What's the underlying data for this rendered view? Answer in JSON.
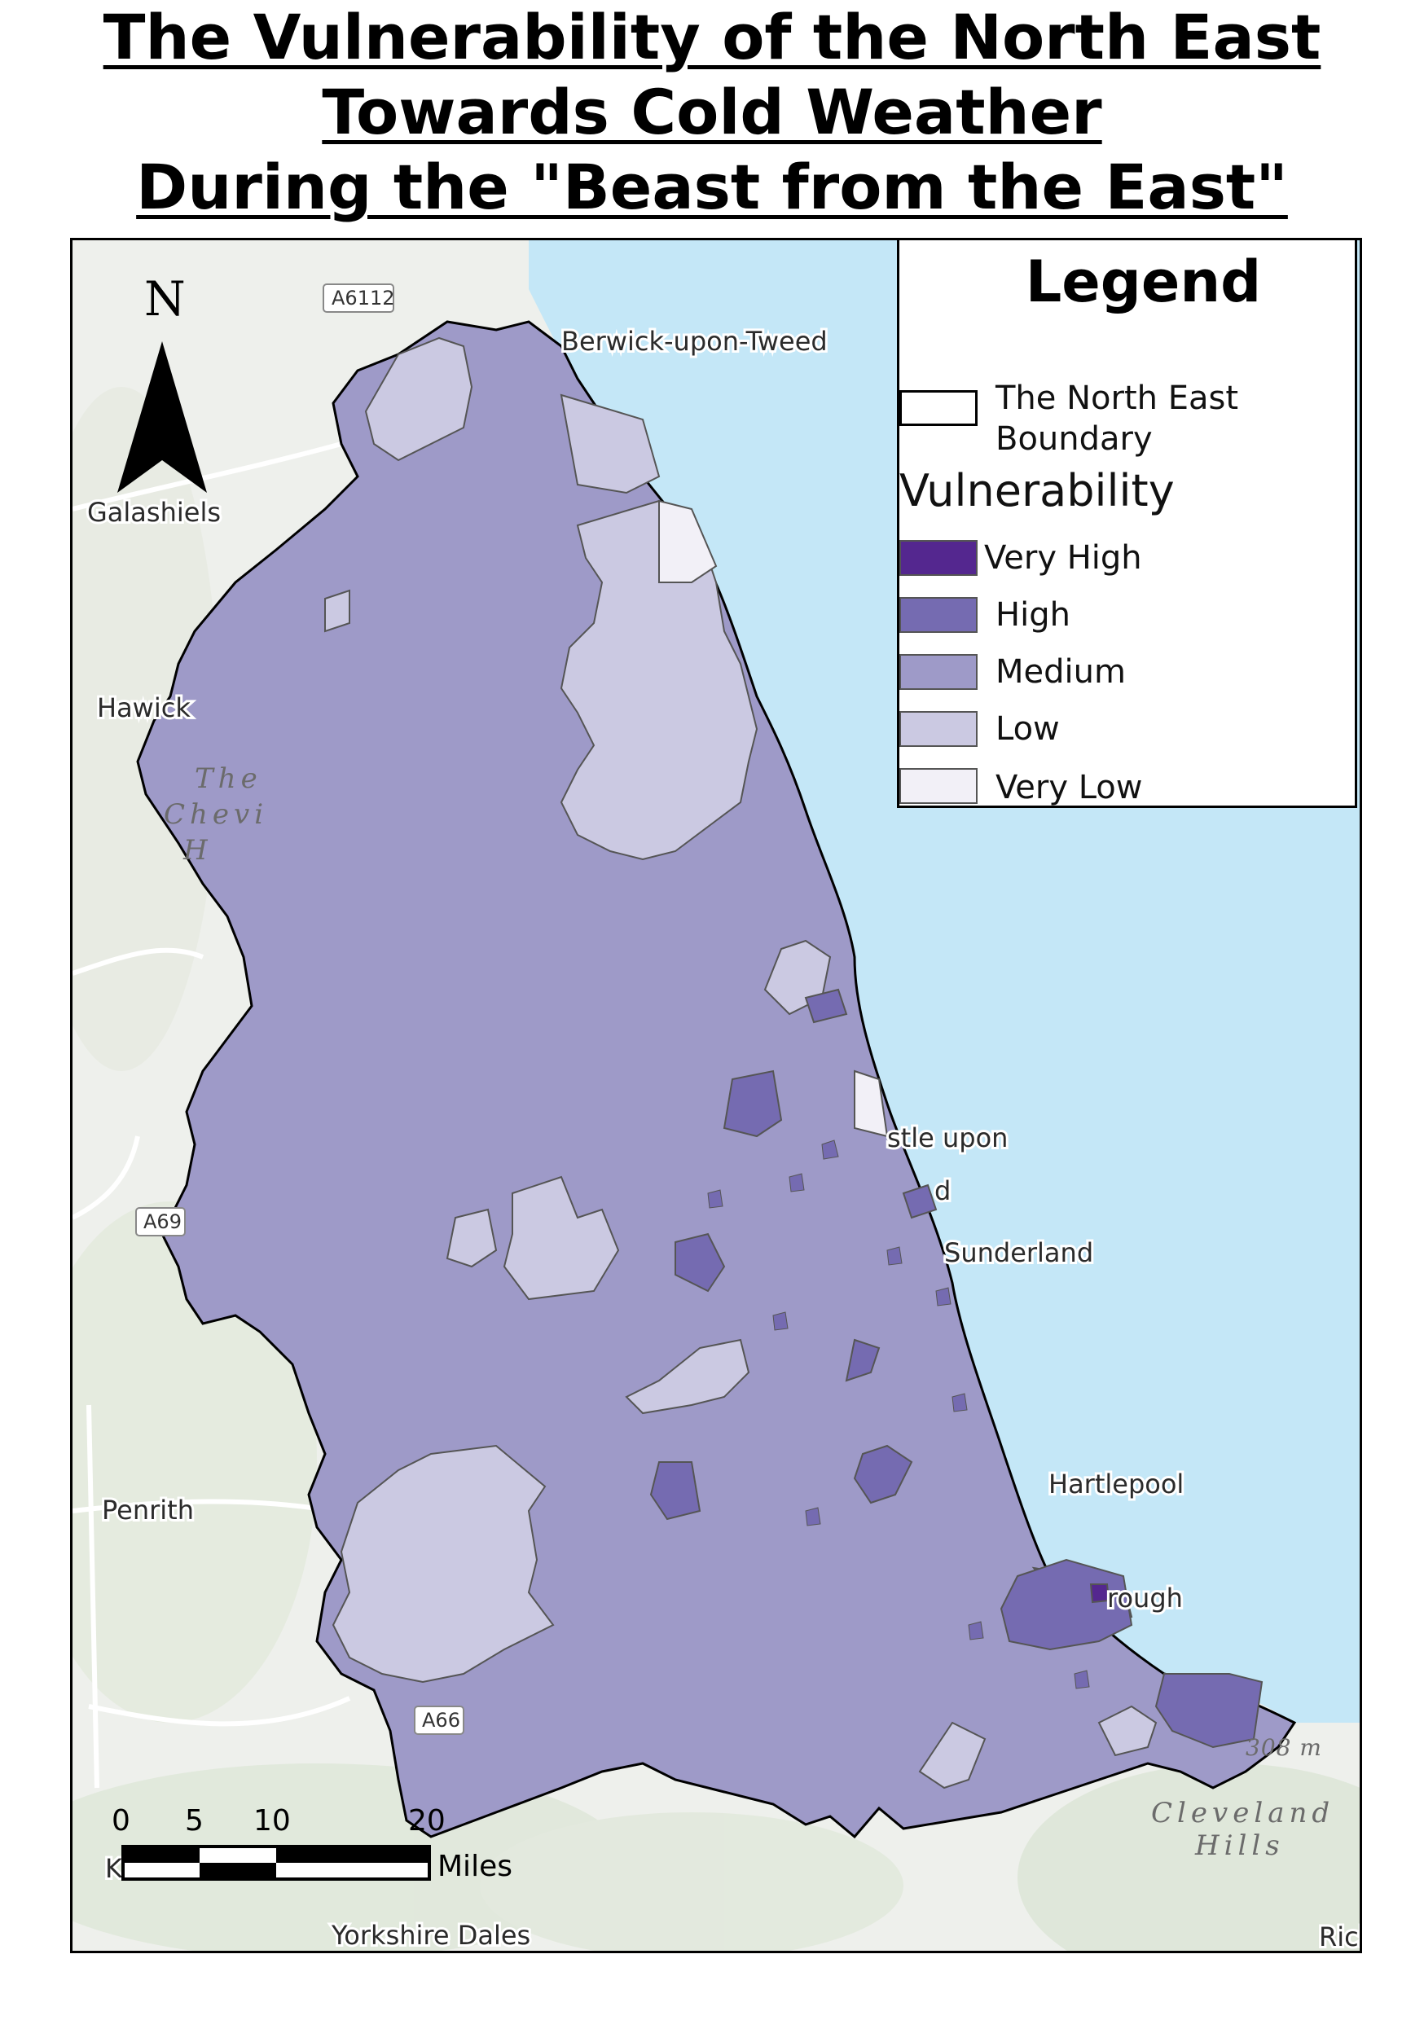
{
  "title": {
    "lines": [
      "The Vulnerability of the North East",
      "Towards Cold Weather",
      "During the \"Beast from the East\""
    ]
  },
  "legend": {
    "title": "Legend",
    "boundary_label_line1": "The North East",
    "boundary_label_line2": "Boundary",
    "vulnerability_heading": "Vulnerability",
    "classes": [
      {
        "label": "Very High",
        "color": "#54278f"
      },
      {
        "label": "High",
        "color": "#756bb1"
      },
      {
        "label": "Medium",
        "color": "#9e9ac8"
      },
      {
        "label": "Low",
        "color": "#cbc9e2"
      },
      {
        "label": "Very Low",
        "color": "#f2f0f7"
      }
    ]
  },
  "north_arrow": {
    "label": "N"
  },
  "scale_bar": {
    "ticks": [
      "0",
      "5",
      "10",
      "20"
    ],
    "unit": "Miles"
  },
  "basemap_labels": {
    "places": [
      "Berwick-upon-Tweed",
      "Galashiels",
      "Hawick",
      "Penrith",
      "stle upon",
      "d",
      "Sunderland",
      "Hartlepool",
      "rough"
    ],
    "roads": [
      "A6112",
      "A69",
      "A66"
    ],
    "hills": [
      "The",
      "Chevi",
      "H",
      "Cleveland",
      "Hills",
      "Yorkshire Dales"
    ],
    "elevation": "308 m",
    "partial": [
      "K",
      "Rich"
    ]
  },
  "colors": {
    "sea": "#c4e7f7",
    "land": "#eef0ec",
    "boundary": "#000000"
  }
}
